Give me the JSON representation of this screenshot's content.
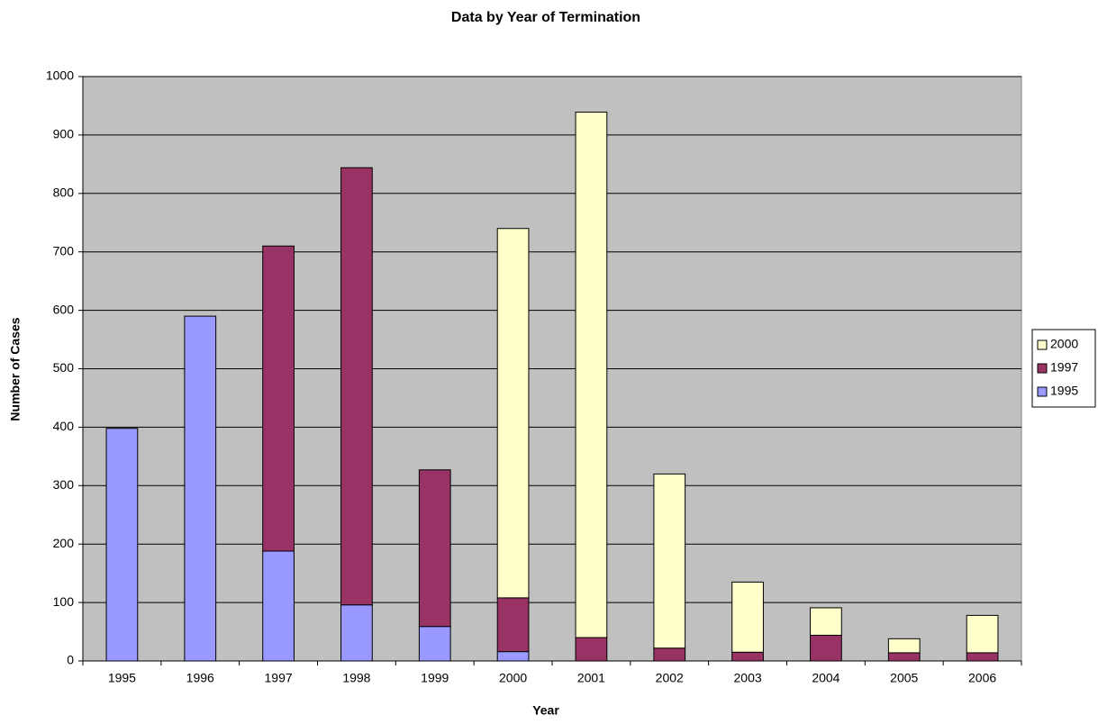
{
  "chart_data": {
    "type": "stacked_bar",
    "title": "Data by Year of Termination",
    "x_label": "Year",
    "y_label": "Number of Cases",
    "categories": [
      "1995",
      "1996",
      "1997",
      "1998",
      "1999",
      "2000",
      "2001",
      "2002",
      "2003",
      "2004",
      "2005",
      "2006"
    ],
    "series": [
      {
        "name": "1995",
        "color": "#9999ff",
        "values": [
          398,
          590,
          188,
          96,
          59,
          16,
          0,
          0,
          0,
          0,
          0,
          0
        ]
      },
      {
        "name": "1997",
        "color": "#993366",
        "values": [
          0,
          0,
          522,
          748,
          268,
          92,
          40,
          22,
          15,
          44,
          14,
          14
        ]
      },
      {
        "name": "2000",
        "color": "#ffffcc",
        "values": [
          0,
          0,
          0,
          0,
          0,
          632,
          899,
          298,
          120,
          47,
          24,
          64
        ]
      }
    ],
    "ylim": [
      0,
      1000
    ],
    "yticks": [
      0,
      100,
      200,
      300,
      400,
      500,
      600,
      700,
      800,
      900,
      1000
    ],
    "grid": true,
    "legend": "right",
    "background": "#c0c0c0"
  }
}
